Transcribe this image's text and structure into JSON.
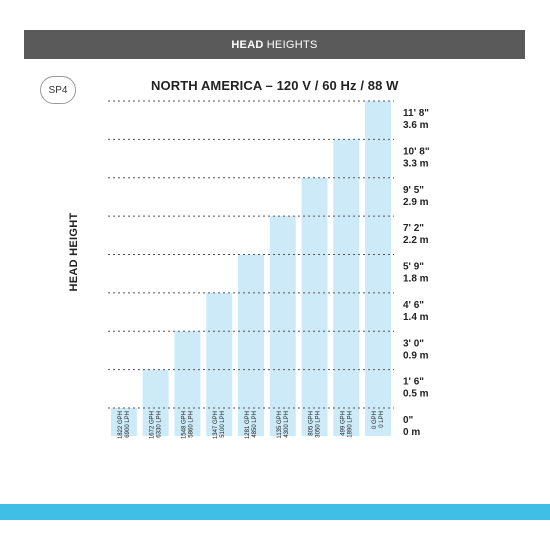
{
  "header": {
    "title_bold": "HEAD",
    "title_rest": "HEIGHTS"
  },
  "badge": "SP4",
  "chart_data": {
    "type": "bar",
    "title": "NORTH AMERICA – 120 V / 60 Hz / 88 W",
    "ylabel": "HEAD HEIGHT",
    "categories": [
      [
        "1822 GPH",
        "6900 LPH"
      ],
      [
        "1672 GPH",
        "6330 LPH"
      ],
      [
        "1548 GPH",
        "5860 LPH"
      ],
      [
        "1347 GPH",
        "5100 LPH"
      ],
      [
        "1281 GPH",
        "4850 LPH"
      ],
      [
        "1135 GPH",
        "4300 LPH"
      ],
      [
        "805 GPH",
        "3050 LPH"
      ],
      [
        "499 GPH",
        "1890 LPH"
      ],
      [
        "0 GPH",
        "0 LPH"
      ]
    ],
    "values": [
      0,
      1,
      2,
      3,
      4,
      5,
      6,
      7,
      8
    ],
    "ylim": [
      0,
      8
    ],
    "tick_labels": [
      [
        "0\"",
        "0 m"
      ],
      [
        "1' 6\"",
        "0.5 m"
      ],
      [
        "3' 0\"",
        "0.9 m"
      ],
      [
        "4' 6\"",
        "1.4 m"
      ],
      [
        "5' 9\"",
        "1.8 m"
      ],
      [
        "7' 2\"",
        "2.2 m"
      ],
      [
        "9' 5\"",
        "2.9 m"
      ],
      [
        "10' 8\"",
        "3.3 m"
      ],
      [
        "11' 8\"",
        "3.6 m"
      ]
    ],
    "grid": true,
    "colors": {
      "bar": "#cdeaf8",
      "grid": "#555555"
    }
  }
}
